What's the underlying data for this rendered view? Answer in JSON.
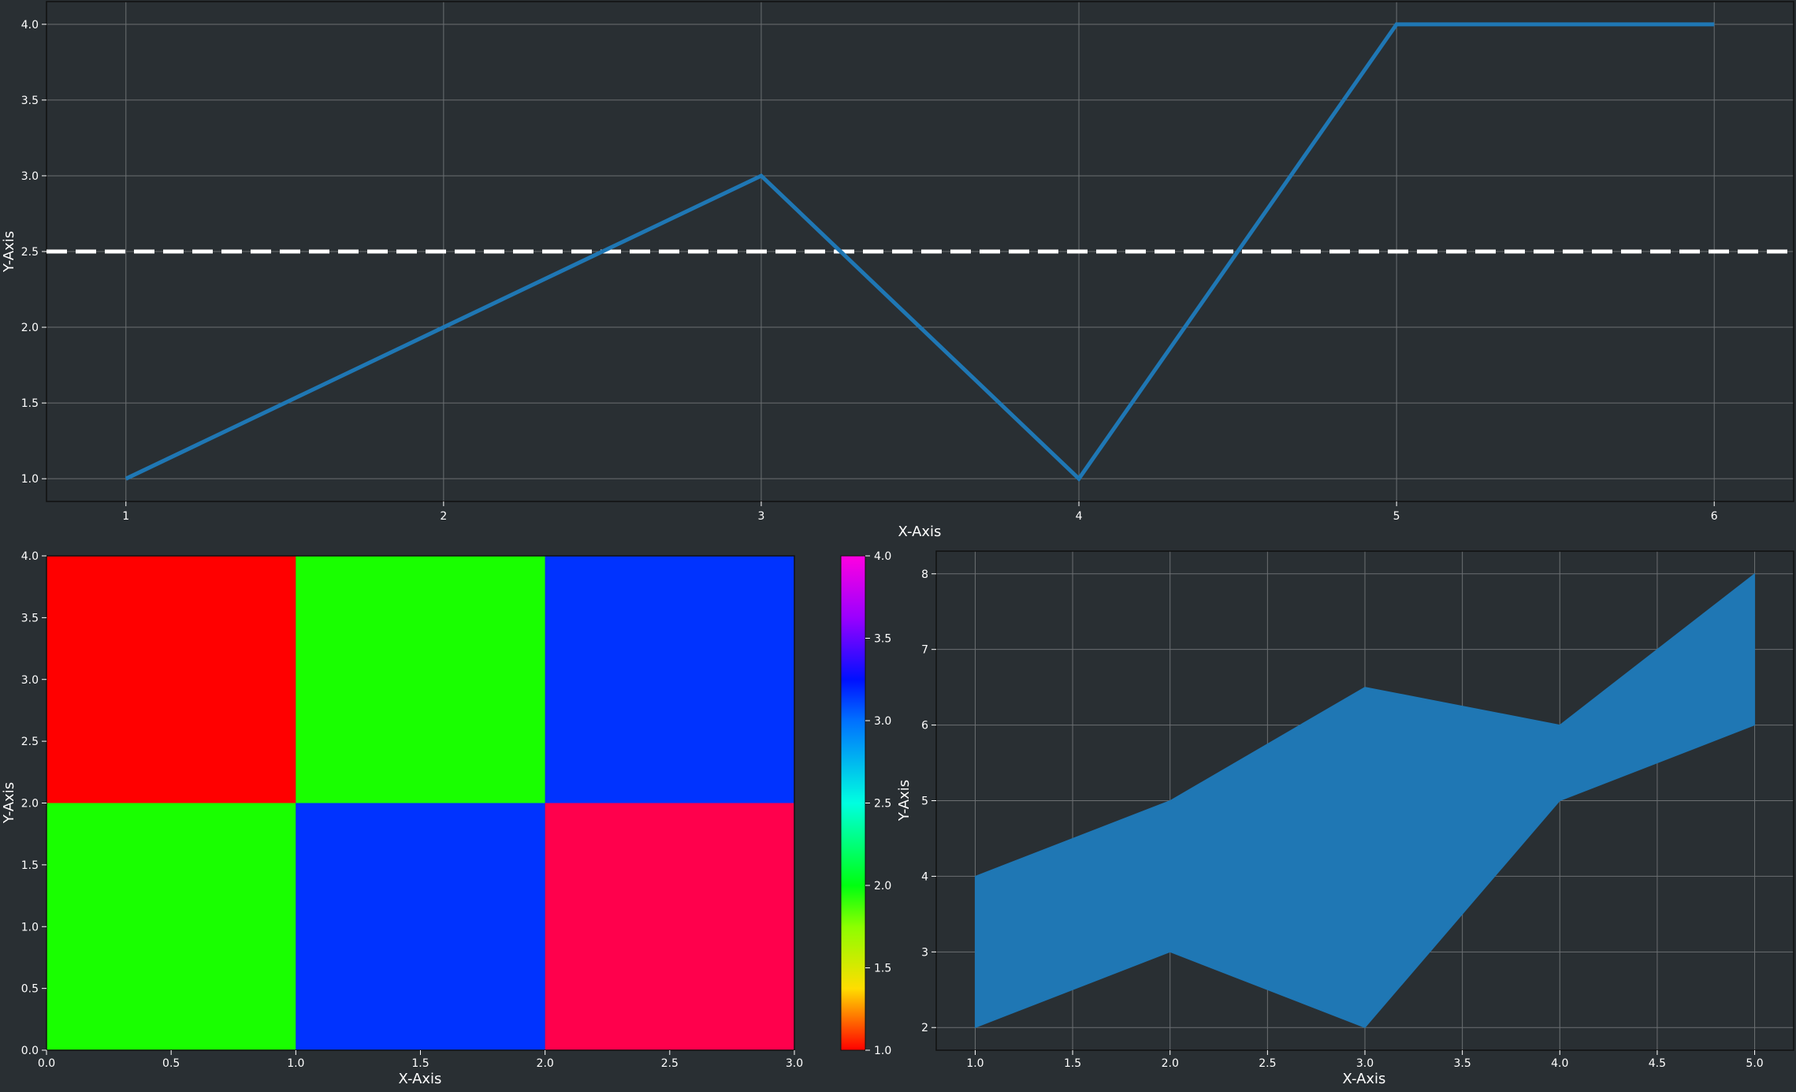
{
  "colors": {
    "background": "#292f33",
    "grid": "#6b6f72",
    "text": "#ffffff",
    "series": "#1f77b4",
    "reference_line": "#ffffff"
  },
  "chart_data": [
    {
      "type": "line",
      "xlabel": "X-Axis",
      "ylabel": "Y-Axis",
      "x": [
        1,
        2,
        3,
        4,
        5,
        6
      ],
      "series": [
        {
          "values": [
            1,
            2,
            3,
            1,
            4,
            4
          ],
          "color": "#1f77b4"
        }
      ],
      "reference_line": {
        "y": 2.5,
        "style": "dashed",
        "color": "#ffffff"
      },
      "xlim": [
        0.75,
        6.25
      ],
      "ylim": [
        0.85,
        4.15
      ],
      "xticks": [
        "1",
        "2",
        "3",
        "4",
        "5",
        "6"
      ],
      "yticks": [
        "1.0",
        "1.5",
        "2.0",
        "2.5",
        "3.0",
        "3.5",
        "4.0"
      ],
      "grid": true
    },
    {
      "type": "heatmap",
      "xlabel": "X-Axis",
      "ylabel": "Y-Axis",
      "x_edges": [
        0,
        1,
        2,
        3
      ],
      "y_edges": [
        0,
        2,
        4
      ],
      "rows_top_to_bottom": [
        [
          1,
          2,
          3
        ],
        [
          2,
          3,
          4
        ]
      ],
      "colormap": "hsv",
      "vmin": 1.0,
      "vmax": 4.0,
      "xticks": [
        "0.0",
        "0.5",
        "1.0",
        "1.5",
        "2.0",
        "2.5",
        "3.0"
      ],
      "yticks": [
        "0.0",
        "0.5",
        "1.0",
        "1.5",
        "2.0",
        "2.5",
        "3.0",
        "3.5",
        "4.0"
      ],
      "colorbar_ticks": [
        "1.0",
        "1.5",
        "2.0",
        "2.5",
        "3.0",
        "3.5",
        "4.0"
      ],
      "grid": false
    },
    {
      "type": "area",
      "xlabel": "X-Axis",
      "ylabel": "Y-Axis",
      "x": [
        1,
        2,
        3,
        4,
        5
      ],
      "lower": [
        2,
        3,
        2,
        5,
        6
      ],
      "upper": [
        4,
        5,
        6.5,
        6,
        8
      ],
      "color": "#1f77b4",
      "xlim": [
        0.8,
        5.2
      ],
      "ylim": [
        1.7,
        8.3
      ],
      "xticks": [
        "1.0",
        "1.5",
        "2.0",
        "2.5",
        "3.0",
        "3.5",
        "4.0",
        "4.5",
        "5.0"
      ],
      "yticks": [
        "2",
        "3",
        "4",
        "5",
        "6",
        "7",
        "8"
      ],
      "grid": true
    }
  ]
}
